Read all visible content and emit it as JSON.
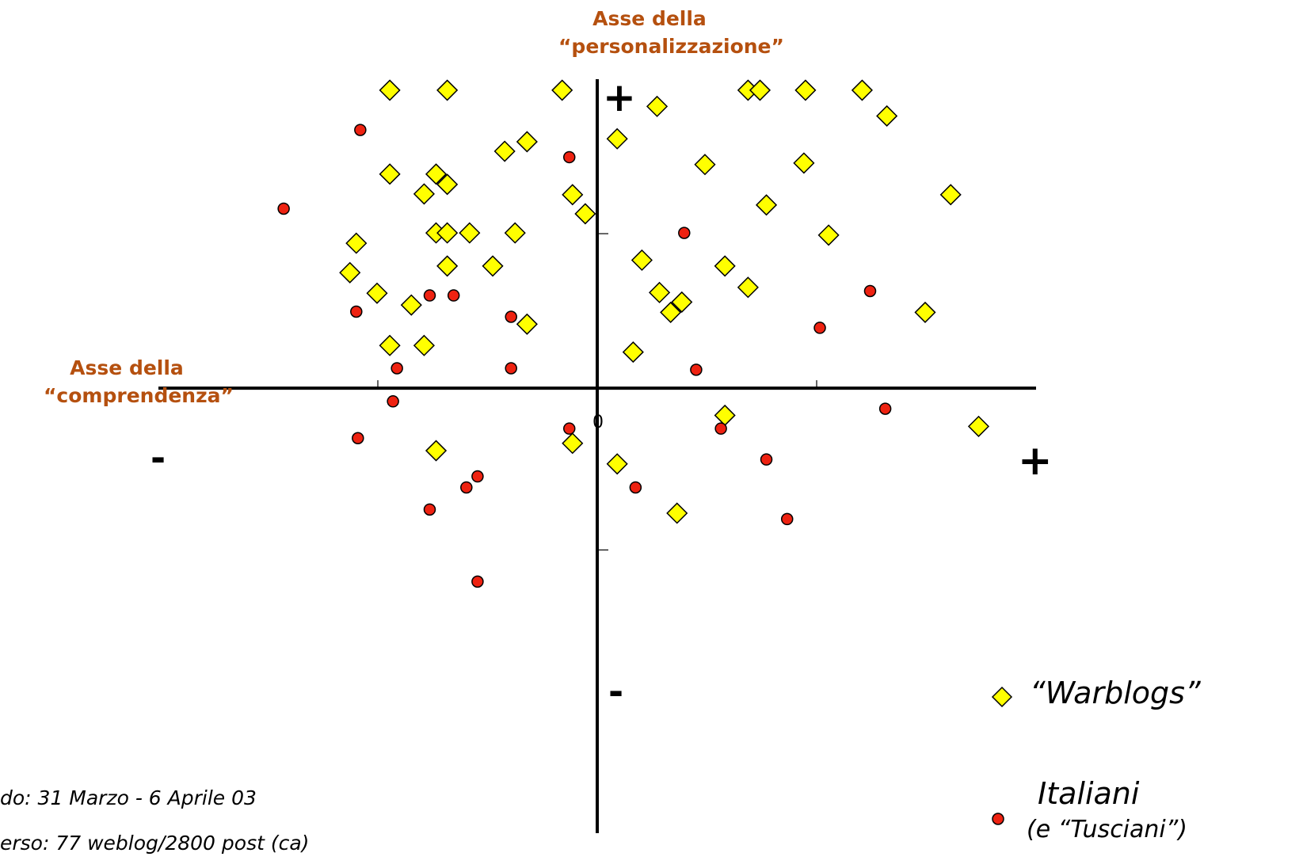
{
  "chart_data": {
    "type": "scatter",
    "y_axis_title": [
      "Asse della",
      "“personalizzazione”"
    ],
    "x_axis_title": [
      "Asse della",
      "“comprendenza”"
    ],
    "x_pos_label": "+",
    "x_neg_label": "-",
    "y_pos_label": "+",
    "y_neg_label": "-",
    "origin_label": "0",
    "xlim": [
      -5.5,
      5.5
    ],
    "ylim": [
      -6.05,
      4.2
    ],
    "series": [
      {
        "name": "“Warblogs”",
        "marker": "diamond",
        "color": "#ffff00",
        "points": [
          [
            -2.6,
            4.05
          ],
          [
            -1.88,
            4.05
          ],
          [
            -0.44,
            4.05
          ],
          [
            1.89,
            4.05
          ],
          [
            2.04,
            4.05
          ],
          [
            2.61,
            4.05
          ],
          [
            3.32,
            4.05
          ],
          [
            0.75,
            3.83
          ],
          [
            3.63,
            3.7
          ],
          [
            0.25,
            3.39
          ],
          [
            -0.88,
            3.35
          ],
          [
            -1.16,
            3.22
          ],
          [
            1.35,
            3.04
          ],
          [
            2.59,
            3.06
          ],
          [
            -2.6,
            2.91
          ],
          [
            -2.02,
            2.91
          ],
          [
            -1.88,
            2.77
          ],
          [
            -2.17,
            2.64
          ],
          [
            -0.31,
            2.63
          ],
          [
            2.12,
            2.49
          ],
          [
            4.43,
            2.63
          ],
          [
            -0.15,
            2.37
          ],
          [
            -2.02,
            2.11
          ],
          [
            -1.88,
            2.11
          ],
          [
            -1.6,
            2.11
          ],
          [
            -1.03,
            2.11
          ],
          [
            2.9,
            2.08
          ],
          [
            -3.02,
            1.97
          ],
          [
            0.56,
            1.74
          ],
          [
            1.6,
            1.66
          ],
          [
            -1.88,
            1.66
          ],
          [
            -1.31,
            1.66
          ],
          [
            -3.1,
            1.57
          ],
          [
            1.89,
            1.37
          ],
          [
            -2.76,
            1.29
          ],
          [
            0.78,
            1.3
          ],
          [
            1.06,
            1.17
          ],
          [
            -2.33,
            1.13
          ],
          [
            0.92,
            1.03
          ],
          [
            4.11,
            1.03
          ],
          [
            -0.88,
            0.87
          ],
          [
            -2.6,
            0.58
          ],
          [
            -2.17,
            0.58
          ],
          [
            0.45,
            0.49
          ],
          [
            1.6,
            -0.37
          ],
          [
            4.78,
            -0.52
          ],
          [
            -2.02,
            -0.85
          ],
          [
            -0.31,
            -0.75
          ],
          [
            0.25,
            -1.03
          ],
          [
            1.0,
            -1.7
          ]
        ]
      },
      {
        "name": "Italiani",
        "marker": "circle",
        "color": "#ee2211",
        "points": [
          [
            -2.97,
            3.51
          ],
          [
            -0.35,
            3.14
          ],
          [
            -3.93,
            2.44
          ],
          [
            1.09,
            2.11
          ],
          [
            -2.1,
            1.26
          ],
          [
            -1.8,
            1.26
          ],
          [
            3.42,
            1.32
          ],
          [
            -3.02,
            1.04
          ],
          [
            -1.08,
            0.97
          ],
          [
            2.79,
            0.82
          ],
          [
            -2.51,
            0.27
          ],
          [
            -1.08,
            0.27
          ],
          [
            1.24,
            0.25
          ],
          [
            -2.56,
            -0.18
          ],
          [
            3.61,
            -0.28
          ],
          [
            -3.0,
            -0.68
          ],
          [
            -0.35,
            -0.55
          ],
          [
            1.55,
            -0.55
          ],
          [
            2.12,
            -0.97
          ],
          [
            -1.5,
            -1.2
          ],
          [
            -1.64,
            -1.35
          ],
          [
            0.48,
            -1.35
          ],
          [
            -2.1,
            -1.65
          ],
          [
            2.38,
            -1.78
          ],
          [
            -1.5,
            -2.63
          ]
        ]
      }
    ]
  },
  "legend": {
    "warblogs_label": "“Warblogs”",
    "italiani_label": "Italiani",
    "italiani_sublabel": "(e “Tusciani”)"
  },
  "footnotes": {
    "line1": "do: 31 Marzo - 6 Aprile 03",
    "line2": "erso: 77 weblog/2800 post (ca)"
  }
}
